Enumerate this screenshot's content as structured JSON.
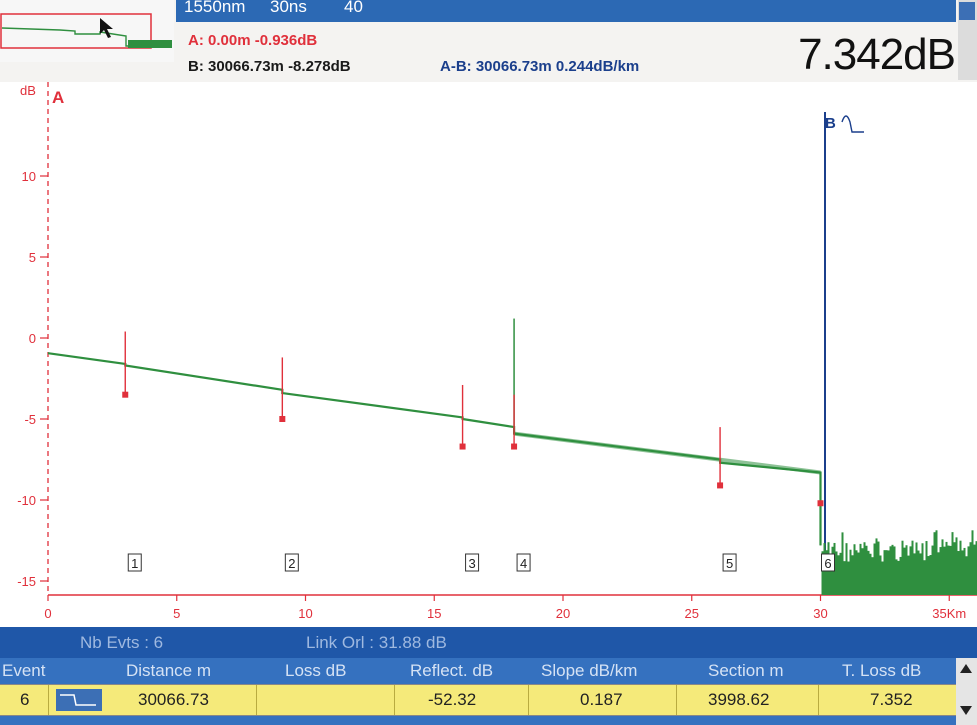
{
  "header": {
    "wavelength": "1550nm",
    "pulse": "30ns",
    "avg": "40",
    "cursor_a": "A: 0.00m -0.936dB",
    "cursor_b": "B: 30066.73m -8.278dB",
    "a_minus_b": "A-B: 30066.73m 0.244dB/km",
    "big_value": "7.342dB"
  },
  "plot": {
    "y_unit": "dB",
    "x_unit": "Km",
    "y_ticks": [
      "10",
      "5",
      "0",
      "-5",
      "-10",
      "-15"
    ],
    "x_ticks": [
      "0",
      "5",
      "10",
      "15",
      "20",
      "25",
      "30",
      "35Km"
    ],
    "cursor_a_label": "A",
    "cursor_b_label": "B"
  },
  "chart_data": {
    "type": "line",
    "xlabel": "Km",
    "ylabel": "dB",
    "xlim": [
      0,
      35
    ],
    "ylim": [
      -16,
      15
    ],
    "series": [
      {
        "x": [
          0,
          3.0,
          3.0,
          9.1,
          9.1,
          16.1,
          16.1,
          18.1,
          18.1,
          26.1,
          26.1,
          30.0,
          30.0,
          35
        ],
        "y": [
          -0.936,
          -1.6,
          -1.7,
          -3.2,
          -3.4,
          -4.9,
          -5.0,
          -5.5,
          -5.9,
          -7.5,
          -7.7,
          -8.3,
          -12.8,
          -12.8
        ]
      }
    ],
    "events": [
      {
        "label": "1",
        "x": 3.0,
        "y_mark": -3.5
      },
      {
        "label": "2",
        "x": 9.1,
        "y_mark": -5.0
      },
      {
        "label": "3",
        "x": 16.1,
        "y_mark": -6.7
      },
      {
        "label": "4",
        "x": 18.1,
        "y_mark": -6.7
      },
      {
        "label": "5",
        "x": 26.1,
        "y_mark": -9.1
      },
      {
        "label": "6",
        "x": 30.0,
        "y_mark": -10.2
      }
    ],
    "cursors": {
      "A": 0,
      "B": 30.07
    }
  },
  "status": {
    "nb_evts": "Nb Evts : 6",
    "link_orl": "Link Orl :  31.88 dB"
  },
  "table": {
    "columns": [
      "Event",
      "Distance  m",
      "Loss dB",
      "Reflect. dB",
      "Slope  dB/km",
      "Section m",
      "T. Loss dB"
    ],
    "row": {
      "event": "6",
      "distance": "30066.73",
      "loss": "",
      "reflect": "-52.32",
      "slope": "0.187",
      "section": "3998.62",
      "tloss": "7.352"
    }
  },
  "colors": {
    "trace": "#2f8f3f",
    "cursor_a": "#e0303b",
    "cursor_b": "#1b3f8c",
    "header_blue": "#2c69b4",
    "row_yellow": "#f5ea7a"
  }
}
